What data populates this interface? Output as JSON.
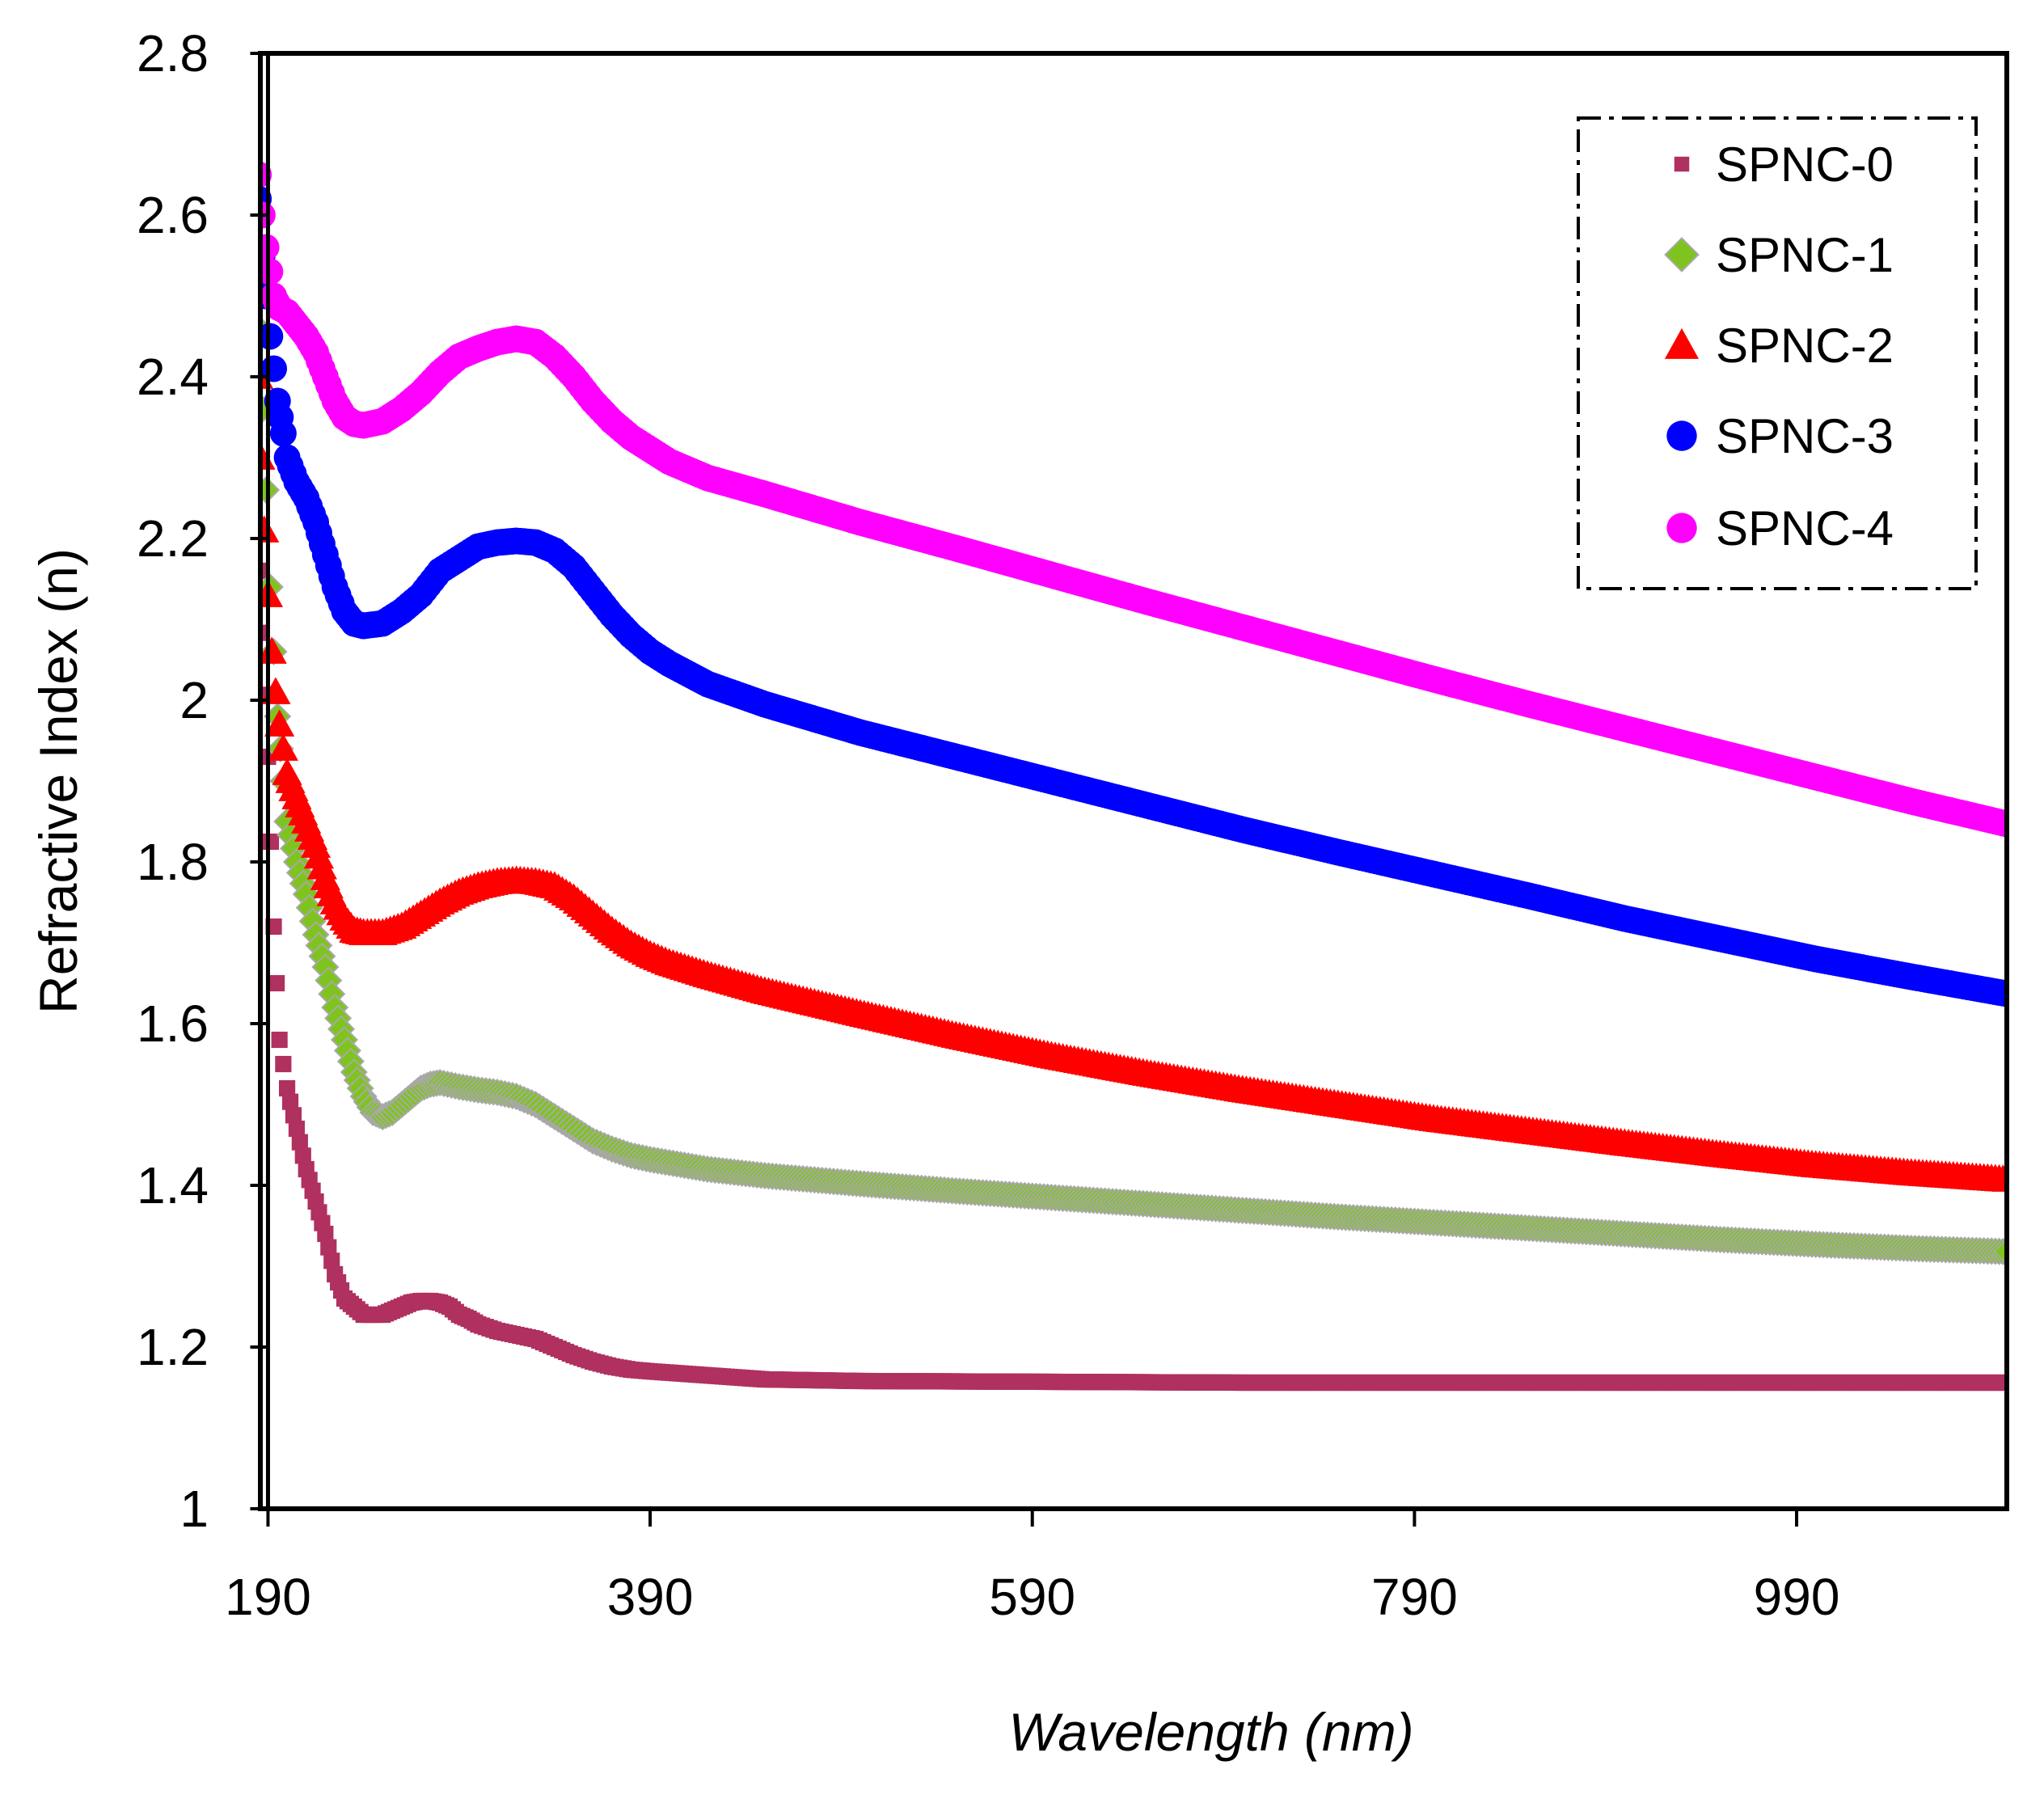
{
  "chart_data": {
    "type": "scatter",
    "title": "",
    "xlabel": "Wavelength (nm)",
    "ylabel": "Refractive Index (n)",
    "xlim": [
      186,
      1100
    ],
    "ylim": [
      1,
      2.8
    ],
    "x_ticks": [
      190,
      390,
      590,
      790,
      990
    ],
    "y_ticks": [
      1,
      1.2,
      1.4,
      1.6,
      1.8,
      2,
      2.2,
      2.4,
      2.6,
      2.8
    ],
    "x_tick_labels": [
      "190",
      "390",
      "590",
      "790",
      "990"
    ],
    "y_tick_labels": [
      "1",
      "1.2",
      "1.4",
      "1.6",
      "1.8",
      "2",
      "2.2",
      "2.4",
      "2.6",
      "2.8"
    ],
    "grid": false,
    "legend_position": "top-right",
    "series": [
      {
        "name": "SPNC-0",
        "color": "#B03060",
        "marker": "square",
        "points": [
          [
            185,
            2.16
          ],
          [
            190,
            1.93
          ],
          [
            193,
            1.72
          ],
          [
            196,
            1.58
          ],
          [
            200,
            1.52
          ],
          [
            205,
            1.47
          ],
          [
            210,
            1.42
          ],
          [
            215,
            1.38
          ],
          [
            220,
            1.34
          ],
          [
            225,
            1.29
          ],
          [
            230,
            1.26
          ],
          [
            235,
            1.25
          ],
          [
            240,
            1.24
          ],
          [
            245,
            1.24
          ],
          [
            250,
            1.24
          ],
          [
            255,
            1.245
          ],
          [
            260,
            1.25
          ],
          [
            265,
            1.255
          ],
          [
            270,
            1.257
          ],
          [
            275,
            1.257
          ],
          [
            280,
            1.255
          ],
          [
            285,
            1.25
          ],
          [
            290,
            1.24
          ],
          [
            295,
            1.235
          ],
          [
            300,
            1.228
          ],
          [
            310,
            1.22
          ],
          [
            320,
            1.215
          ],
          [
            330,
            1.21
          ],
          [
            340,
            1.2
          ],
          [
            350,
            1.19
          ],
          [
            360,
            1.182
          ],
          [
            370,
            1.176
          ],
          [
            380,
            1.172
          ],
          [
            390,
            1.17
          ],
          [
            420,
            1.165
          ],
          [
            450,
            1.16
          ],
          [
            500,
            1.158
          ],
          [
            600,
            1.157
          ],
          [
            700,
            1.156
          ],
          [
            800,
            1.156
          ],
          [
            900,
            1.156
          ],
          [
            1000,
            1.156
          ],
          [
            1100,
            1.156
          ]
        ]
      },
      {
        "name": "SPNC-1",
        "color": "#7FC41E",
        "marker": "diamond",
        "points": [
          [
            185,
            2.46
          ],
          [
            187,
            2.36
          ],
          [
            189,
            2.26
          ],
          [
            191,
            2.14
          ],
          [
            193,
            2.06
          ],
          [
            195,
            1.98
          ],
          [
            198,
            1.9
          ],
          [
            200,
            1.85
          ],
          [
            205,
            1.8
          ],
          [
            210,
            1.76
          ],
          [
            215,
            1.71
          ],
          [
            220,
            1.67
          ],
          [
            225,
            1.62
          ],
          [
            230,
            1.58
          ],
          [
            235,
            1.54
          ],
          [
            240,
            1.51
          ],
          [
            245,
            1.49
          ],
          [
            250,
            1.485
          ],
          [
            255,
            1.49
          ],
          [
            260,
            1.5
          ],
          [
            265,
            1.51
          ],
          [
            270,
            1.52
          ],
          [
            275,
            1.525
          ],
          [
            280,
            1.527
          ],
          [
            290,
            1.522
          ],
          [
            300,
            1.518
          ],
          [
            310,
            1.515
          ],
          [
            320,
            1.51
          ],
          [
            330,
            1.5
          ],
          [
            340,
            1.485
          ],
          [
            350,
            1.47
          ],
          [
            360,
            1.455
          ],
          [
            370,
            1.445
          ],
          [
            380,
            1.437
          ],
          [
            390,
            1.432
          ],
          [
            400,
            1.428
          ],
          [
            420,
            1.42
          ],
          [
            450,
            1.412
          ],
          [
            500,
            1.402
          ],
          [
            550,
            1.393
          ],
          [
            600,
            1.385
          ],
          [
            650,
            1.377
          ],
          [
            700,
            1.369
          ],
          [
            750,
            1.361
          ],
          [
            800,
            1.354
          ],
          [
            850,
            1.347
          ],
          [
            900,
            1.34
          ],
          [
            950,
            1.333
          ],
          [
            1000,
            1.327
          ],
          [
            1050,
            1.322
          ],
          [
            1100,
            1.318
          ]
        ]
      },
      {
        "name": "SPNC-2",
        "color": "#FF0000",
        "marker": "triangle",
        "points": [
          [
            185,
            2.4
          ],
          [
            186,
            2.3
          ],
          [
            188,
            2.21
          ],
          [
            190,
            2.13
          ],
          [
            192,
            2.06
          ],
          [
            194,
            2.01
          ],
          [
            196,
            1.97
          ],
          [
            198,
            1.94
          ],
          [
            200,
            1.91
          ],
          [
            205,
            1.88
          ],
          [
            210,
            1.85
          ],
          [
            215,
            1.82
          ],
          [
            220,
            1.78
          ],
          [
            225,
            1.75
          ],
          [
            230,
            1.73
          ],
          [
            235,
            1.715
          ],
          [
            240,
            1.712
          ],
          [
            250,
            1.712
          ],
          [
            260,
            1.72
          ],
          [
            270,
            1.735
          ],
          [
            280,
            1.75
          ],
          [
            290,
            1.762
          ],
          [
            300,
            1.77
          ],
          [
            310,
            1.775
          ],
          [
            320,
            1.777
          ],
          [
            330,
            1.775
          ],
          [
            340,
            1.77
          ],
          [
            350,
            1.755
          ],
          [
            360,
            1.735
          ],
          [
            370,
            1.715
          ],
          [
            380,
            1.698
          ],
          [
            390,
            1.685
          ],
          [
            400,
            1.675
          ],
          [
            420,
            1.66
          ],
          [
            450,
            1.64
          ],
          [
            500,
            1.612
          ],
          [
            550,
            1.585
          ],
          [
            600,
            1.56
          ],
          [
            650,
            1.538
          ],
          [
            700,
            1.518
          ],
          [
            750,
            1.5
          ],
          [
            800,
            1.482
          ],
          [
            850,
            1.467
          ],
          [
            900,
            1.452
          ],
          [
            950,
            1.438
          ],
          [
            1000,
            1.425
          ],
          [
            1050,
            1.415
          ],
          [
            1100,
            1.407
          ]
        ]
      },
      {
        "name": "SPNC-3",
        "color": "#0000FF",
        "marker": "circle",
        "points": [
          [
            185,
            2.62
          ],
          [
            186,
            2.6
          ],
          [
            187,
            2.55
          ],
          [
            189,
            2.5
          ],
          [
            191,
            2.45
          ],
          [
            193,
            2.41
          ],
          [
            195,
            2.37
          ],
          [
            198,
            2.33
          ],
          [
            200,
            2.3
          ],
          [
            205,
            2.27
          ],
          [
            210,
            2.25
          ],
          [
            215,
            2.22
          ],
          [
            220,
            2.18
          ],
          [
            225,
            2.14
          ],
          [
            230,
            2.11
          ],
          [
            235,
            2.095
          ],
          [
            240,
            2.092
          ],
          [
            250,
            2.095
          ],
          [
            260,
            2.11
          ],
          [
            270,
            2.13
          ],
          [
            280,
            2.16
          ],
          [
            290,
            2.175
          ],
          [
            300,
            2.19
          ],
          [
            310,
            2.195
          ],
          [
            320,
            2.197
          ],
          [
            330,
            2.195
          ],
          [
            340,
            2.185
          ],
          [
            350,
            2.165
          ],
          [
            360,
            2.135
          ],
          [
            370,
            2.105
          ],
          [
            380,
            2.08
          ],
          [
            390,
            2.06
          ],
          [
            400,
            2.045
          ],
          [
            420,
            2.02
          ],
          [
            450,
            1.995
          ],
          [
            500,
            1.96
          ],
          [
            550,
            1.93
          ],
          [
            600,
            1.9
          ],
          [
            650,
            1.87
          ],
          [
            700,
            1.84
          ],
          [
            750,
            1.812
          ],
          [
            800,
            1.785
          ],
          [
            850,
            1.758
          ],
          [
            900,
            1.73
          ],
          [
            950,
            1.705
          ],
          [
            1000,
            1.68
          ],
          [
            1050,
            1.658
          ],
          [
            1100,
            1.637
          ]
        ]
      },
      {
        "name": "SPNC-4",
        "color": "#FF00FF",
        "marker": "circle",
        "points": [
          [
            185,
            2.65
          ],
          [
            187,
            2.6
          ],
          [
            189,
            2.56
          ],
          [
            191,
            2.53
          ],
          [
            193,
            2.5
          ],
          [
            196,
            2.485
          ],
          [
            200,
            2.48
          ],
          [
            205,
            2.465
          ],
          [
            210,
            2.45
          ],
          [
            215,
            2.43
          ],
          [
            220,
            2.4
          ],
          [
            225,
            2.37
          ],
          [
            230,
            2.35
          ],
          [
            235,
            2.342
          ],
          [
            240,
            2.34
          ],
          [
            250,
            2.345
          ],
          [
            260,
            2.36
          ],
          [
            270,
            2.38
          ],
          [
            280,
            2.405
          ],
          [
            290,
            2.425
          ],
          [
            300,
            2.435
          ],
          [
            310,
            2.443
          ],
          [
            320,
            2.447
          ],
          [
            330,
            2.443
          ],
          [
            340,
            2.425
          ],
          [
            350,
            2.4
          ],
          [
            360,
            2.37
          ],
          [
            370,
            2.345
          ],
          [
            380,
            2.325
          ],
          [
            390,
            2.31
          ],
          [
            400,
            2.295
          ],
          [
            420,
            2.275
          ],
          [
            450,
            2.255
          ],
          [
            500,
            2.22
          ],
          [
            550,
            2.188
          ],
          [
            600,
            2.155
          ],
          [
            650,
            2.122
          ],
          [
            700,
            2.09
          ],
          [
            750,
            2.058
          ],
          [
            800,
            2.026
          ],
          [
            850,
            1.995
          ],
          [
            900,
            1.965
          ],
          [
            950,
            1.935
          ],
          [
            1000,
            1.905
          ],
          [
            1050,
            1.875
          ],
          [
            1100,
            1.847
          ]
        ]
      }
    ]
  }
}
